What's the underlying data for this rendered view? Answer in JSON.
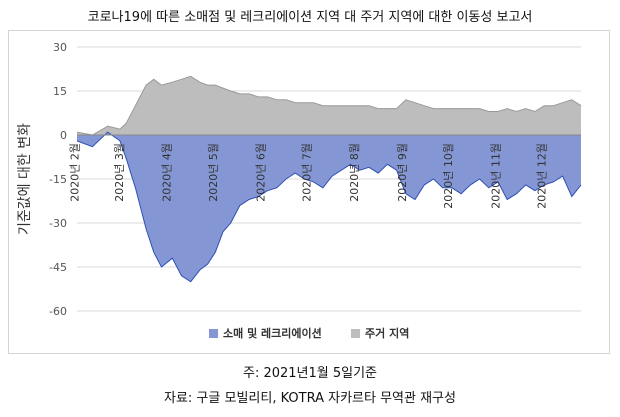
{
  "title": "코로나19에 따른 소매점 및 레크리에이션 지역 대 주거 지역에 대한 이동성 보고서",
  "note_date": "주: 2021년1월 5일기준",
  "note_source": "자료: 구글 모빌리티, KOTRA 자카르타 무역관 재구성",
  "colors": {
    "retail": "#8497D4",
    "retail_stroke": "#2F4FB5",
    "residential": "#BDBDBD",
    "residential_stroke": "#9A9A9A",
    "grid": "#D9D9D9"
  },
  "chart_data": {
    "type": "area",
    "title": "",
    "xlabel": "",
    "ylabel": "기준값에 대한 변화",
    "ylim": [
      -60,
      30
    ],
    "yticks": [
      30,
      15,
      0,
      -15,
      -30,
      -45,
      -60
    ],
    "x_tick_labels": [
      "2020년 2월",
      "2020년 3월",
      "2020년 4월",
      "2020년 5월",
      "2020년 6월",
      "2020년 7월",
      "2020년 8월",
      "2020년 9월",
      "2020년 10월",
      "2020년 11월",
      "2020년 12월"
    ],
    "x_label_days": [
      1,
      30,
      61,
      91,
      122,
      152,
      183,
      214,
      244,
      275,
      305
    ],
    "grid": true,
    "legend_position": "bottom",
    "series": [
      {
        "name": "소매 및 레크리에이션",
        "days": [
          0,
          10,
          20,
          28,
          32,
          38,
          45,
          50,
          55,
          62,
          68,
          74,
          80,
          85,
          90,
          95,
          100,
          106,
          112,
          118,
          124,
          130,
          136,
          142,
          148,
          154,
          160,
          166,
          172,
          178,
          184,
          190,
          196,
          202,
          208,
          214,
          220,
          226,
          232,
          238,
          244,
          250,
          256,
          262,
          268,
          274,
          280,
          286,
          292,
          298,
          304,
          310,
          316,
          322,
          328
        ],
        "values": [
          -2,
          -4,
          1,
          -2,
          -8,
          -18,
          -32,
          -40,
          -45,
          -42,
          -48,
          -50,
          -46,
          -44,
          -40,
          -33,
          -30,
          -24,
          -22,
          -21,
          -19,
          -18,
          -15,
          -13,
          -15,
          -16,
          -18,
          -14,
          -12,
          -10,
          -12,
          -11,
          -13,
          -10,
          -12,
          -20,
          -22,
          -17,
          -15,
          -18,
          -18,
          -20,
          -17,
          -15,
          -18,
          -16,
          -22,
          -20,
          -17,
          -19,
          -17,
          -16,
          -14,
          -21,
          -17
        ]
      },
      {
        "name": "주거 지역",
        "days": [
          0,
          10,
          20,
          28,
          32,
          38,
          45,
          50,
          55,
          62,
          68,
          74,
          80,
          85,
          90,
          95,
          100,
          106,
          112,
          118,
          124,
          130,
          136,
          142,
          148,
          154,
          160,
          166,
          172,
          178,
          184,
          190,
          196,
          202,
          208,
          214,
          220,
          226,
          232,
          238,
          244,
          250,
          256,
          262,
          268,
          274,
          280,
          286,
          292,
          298,
          304,
          310,
          316,
          322,
          328
        ],
        "values": [
          1,
          0,
          3,
          2,
          4,
          10,
          17,
          19,
          17,
          18,
          19,
          20,
          18,
          17,
          17,
          16,
          15,
          14,
          14,
          13,
          13,
          12,
          12,
          11,
          11,
          11,
          10,
          10,
          10,
          10,
          10,
          10,
          9,
          9,
          9,
          12,
          11,
          10,
          9,
          9,
          9,
          9,
          9,
          9,
          8,
          8,
          9,
          8,
          9,
          8,
          10,
          10,
          11,
          12,
          10
        ]
      }
    ]
  }
}
